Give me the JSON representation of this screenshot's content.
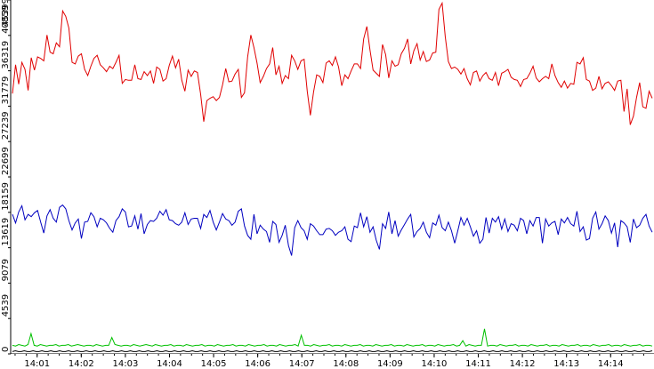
{
  "chart_data": {
    "type": "line",
    "grid": false,
    "y_axis": {
      "ticks": [
        0,
        4539,
        9079,
        13619,
        18159,
        22699,
        27239,
        31779,
        36319,
        40859,
        45399
      ],
      "range": [
        0,
        45399
      ]
    },
    "x_axis": {
      "ticks": [
        "14:01",
        "14:02",
        "14:03",
        "14:04",
        "14:05",
        "14:06",
        "14:07",
        "14:08",
        "14:09",
        "14:10",
        "14:11",
        "14:12",
        "14:13",
        "14:14"
      ],
      "range": [
        "14:00:24",
        "14:14:59"
      ]
    },
    "series": [
      {
        "color": "#e00000",
        "values": [
          33400,
          37100,
          34600,
          37400,
          36500,
          33800,
          38000,
          36400,
          38100,
          37900,
          37600,
          40900,
          38700,
          38500,
          39900,
          39400,
          44000,
          43300,
          41800,
          37400,
          37200,
          38200,
          38500,
          36500,
          35700,
          36900,
          37900,
          38300,
          37100,
          36700,
          36200,
          36900,
          36600,
          37400,
          38300,
          34700,
          35200,
          35100,
          35100,
          37100,
          35300,
          35200,
          36200,
          35700,
          36300,
          34700,
          36800,
          36500,
          35000,
          35300,
          37000,
          38200,
          36700,
          37800,
          35100,
          33700,
          36400,
          35600,
          36300,
          36100,
          33300,
          29800,
          32500,
          32800,
          33000,
          32500,
          32900,
          34500,
          36600,
          34900,
          35000,
          35900,
          36500,
          32900,
          33500,
          38100,
          40900,
          39300,
          37300,
          34800,
          35600,
          36600,
          37200,
          39300,
          35800,
          36900,
          34700,
          35700,
          35300,
          38300,
          37600,
          36500,
          37600,
          37800,
          33700,
          30600,
          33600,
          35800,
          35600,
          34800,
          37300,
          37600,
          37000,
          38100,
          36800,
          34400,
          35800,
          35300,
          36300,
          37200,
          37200,
          36600,
          40400,
          42000,
          39000,
          36400,
          36000,
          35600,
          39700,
          38400,
          35400,
          37600,
          36900,
          37100,
          38500,
          39200,
          40400,
          37200,
          38900,
          39800,
          37700,
          38800,
          37500,
          37700,
          38600,
          38700,
          44200,
          45000,
          40700,
          37500,
          36600,
          36800,
          36500,
          35900,
          36600,
          35300,
          34500,
          36100,
          36300,
          35000,
          35700,
          36100,
          35300,
          35100,
          36100,
          34400,
          36000,
          36200,
          36500,
          35500,
          35200,
          35100,
          34300,
          35200,
          35300,
          36000,
          36900,
          35400,
          34900,
          35300,
          35600,
          35300,
          37200,
          35700,
          34800,
          34200,
          35000,
          34100,
          34700,
          34600,
          37400,
          37200,
          38000,
          35200,
          35000,
          33800,
          34100,
          35600,
          34000,
          34700,
          34900,
          34400,
          33800,
          35000,
          35100,
          31100,
          34000,
          29400,
          30500,
          32900,
          34800,
          31700,
          31500,
          33700,
          32800
        ],
        "note_peaks": []
      },
      {
        "color": "#0000c0",
        "values": [
          17900,
          16800,
          18200,
          19000,
          17200,
          17900,
          17600,
          18100,
          18400,
          16900,
          15500,
          17700,
          18500,
          17400,
          16900,
          18800,
          19100,
          18600,
          17100,
          15900,
          16800,
          17300,
          14800,
          16900,
          17000,
          18100,
          17600,
          16300,
          17400,
          17200,
          16800,
          16100,
          15600,
          17100,
          17600,
          18600,
          18200,
          16300,
          16400,
          17700,
          16000,
          18000,
          15400,
          16600,
          17100,
          17000,
          17400,
          18300,
          17800,
          18500,
          17200,
          17100,
          16700,
          16500,
          16900,
          18100,
          16600,
          17300,
          17400,
          17400,
          16100,
          17900,
          17500,
          18400,
          16900,
          15900,
          16900,
          18000,
          17300,
          17100,
          16500,
          16900,
          18300,
          18600,
          16400,
          15200,
          14700,
          17900,
          15400,
          16500,
          16000,
          15700,
          14300,
          17000,
          16600,
          14300,
          15200,
          16500,
          13900,
          12600,
          16200,
          17100,
          16200,
          15800,
          14700,
          16700,
          16400,
          15800,
          15300,
          15300,
          16000,
          16100,
          15800,
          15200,
          15600,
          15800,
          16300,
          14700,
          14400,
          16400,
          16200,
          18100,
          16300,
          17600,
          15600,
          16300,
          14600,
          13400,
          16700,
          16100,
          18200,
          15400,
          17100,
          15100,
          15900,
          16600,
          17300,
          17900,
          15000,
          15700,
          16100,
          16900,
          15600,
          14900,
          16800,
          16500,
          17800,
          16200,
          15800,
          16900,
          15800,
          14200,
          15800,
          17500,
          16500,
          17400,
          16300,
          15100,
          15800,
          14200,
          14700,
          17500,
          15500,
          17400,
          16900,
          17600,
          16000,
          17300,
          15700,
          16700,
          16500,
          15800,
          17400,
          17100,
          15400,
          17100,
          16400,
          17500,
          17500,
          14200,
          17300,
          16400,
          16800,
          17000,
          15300,
          17300,
          16800,
          17500,
          16700,
          16400,
          18300,
          15700,
          16300,
          14600,
          14800,
          17400,
          18200,
          16000,
          16700,
          17700,
          17100,
          15500,
          16800,
          13700,
          17100,
          16800,
          16300,
          14300,
          17300,
          16200,
          16500,
          17400,
          17900,
          16400,
          15600
        ]
      },
      {
        "color": "#00c000",
        "values": [
          1100,
          1000,
          1200,
          1100,
          1000,
          1200,
          2600,
          1100,
          1000,
          1200,
          1100,
          1000,
          1100,
          1100,
          1200,
          1000,
          1100,
          1100,
          1200,
          1000,
          1100,
          1200,
          1100,
          1000,
          1100,
          1100,
          1000,
          1200,
          1100,
          1000,
          1100,
          1100,
          2100,
          1200,
          1100,
          1000,
          1100,
          1100,
          1000,
          1200,
          1100,
          1000,
          1100,
          1200,
          1100,
          1000,
          1200,
          1100,
          1000,
          1100,
          1100,
          1200,
          1000,
          1100,
          1100,
          1000,
          1200,
          1100,
          1000,
          1100,
          1100,
          1200,
          1000,
          1100,
          1100,
          1000,
          1200,
          1100,
          1000,
          1100,
          1100,
          1200,
          1000,
          1100,
          1100,
          1000,
          1200,
          1100,
          1000,
          1100,
          1100,
          1200,
          1000,
          1100,
          1100,
          1000,
          1200,
          1100,
          1000,
          1100,
          1100,
          1200,
          1000,
          2400,
          1100,
          1100,
          1000,
          1200,
          1100,
          1000,
          1100,
          1100,
          1200,
          1000,
          1100,
          1100,
          1000,
          1200,
          1100,
          1000,
          1100,
          1100,
          1200,
          1000,
          1100,
          1100,
          1000,
          1200,
          1100,
          1000,
          1100,
          1100,
          1200,
          1000,
          1100,
          1100,
          1000,
          1200,
          1100,
          1000,
          1100,
          1100,
          1200,
          1000,
          1100,
          1100,
          1000,
          1200,
          1100,
          1000,
          1100,
          1100,
          1200,
          1000,
          1100,
          1700,
          1000,
          1200,
          1100,
          1000,
          1100,
          1100,
          3200,
          1000,
          1100,
          1100,
          1000,
          1200,
          1100,
          1000,
          1100,
          1100,
          1200,
          1000,
          1100,
          1100,
          1000,
          1200,
          1100,
          1000,
          1100,
          1100,
          1200,
          1000,
          1100,
          1100,
          1000,
          1200,
          1100,
          1000,
          1100,
          1100,
          1200,
          1000,
          1100,
          1100,
          1000,
          1200,
          1100,
          1000,
          1100,
          1100,
          1200,
          1000,
          1100,
          1100,
          1000,
          1200,
          1100,
          1000,
          1100,
          1100,
          1200,
          1000,
          1100,
          1100,
          1000
        ]
      },
      {
        "color": "#000000",
        "values": [
          300,
          400,
          300,
          300,
          400,
          300,
          300,
          400,
          300,
          300,
          400,
          300,
          300,
          400,
          300,
          300,
          400,
          300,
          300,
          400,
          300,
          300,
          400,
          300,
          300,
          400,
          300,
          300,
          400,
          300,
          300,
          400,
          300,
          300,
          400,
          300,
          300,
          400,
          300,
          300,
          400,
          300,
          300,
          400,
          300,
          300,
          400,
          300,
          300,
          400,
          300,
          300,
          400,
          300,
          300,
          400,
          300,
          300,
          400,
          300,
          300,
          400,
          300,
          300,
          400,
          300,
          300,
          400,
          300,
          300,
          400,
          300,
          300,
          400,
          300,
          300,
          400,
          300,
          300,
          400,
          300,
          300,
          400,
          300,
          300,
          400,
          300,
          300,
          400,
          300,
          300,
          400,
          300,
          300,
          400,
          300,
          300,
          400,
          300,
          300,
          400,
          300,
          300,
          400,
          300,
          300,
          400,
          300,
          300,
          400,
          300,
          300,
          400,
          300,
          300,
          400,
          300,
          300,
          400,
          300,
          300,
          400,
          300,
          300,
          400,
          300,
          300,
          400,
          300,
          300,
          400,
          300,
          300,
          400,
          300,
          300,
          400,
          300,
          300,
          400,
          300,
          300,
          400,
          300,
          300,
          400,
          300,
          300,
          400,
          300,
          300,
          400,
          300,
          300,
          400,
          300,
          300,
          400,
          300,
          300,
          400,
          300,
          300,
          400,
          300,
          300,
          400,
          300,
          300,
          400,
          300,
          300,
          400,
          300,
          300,
          400,
          300,
          300,
          400,
          300,
          300,
          400,
          300,
          300,
          400,
          300,
          300,
          400,
          300,
          300,
          400,
          300,
          300,
          400,
          300,
          300,
          400,
          300,
          300,
          400,
          300,
          300,
          400,
          300,
          300,
          400,
          300,
          300,
          400,
          300,
          300,
          400,
          300,
          300,
          400,
          300,
          300,
          400
        ]
      }
    ]
  }
}
